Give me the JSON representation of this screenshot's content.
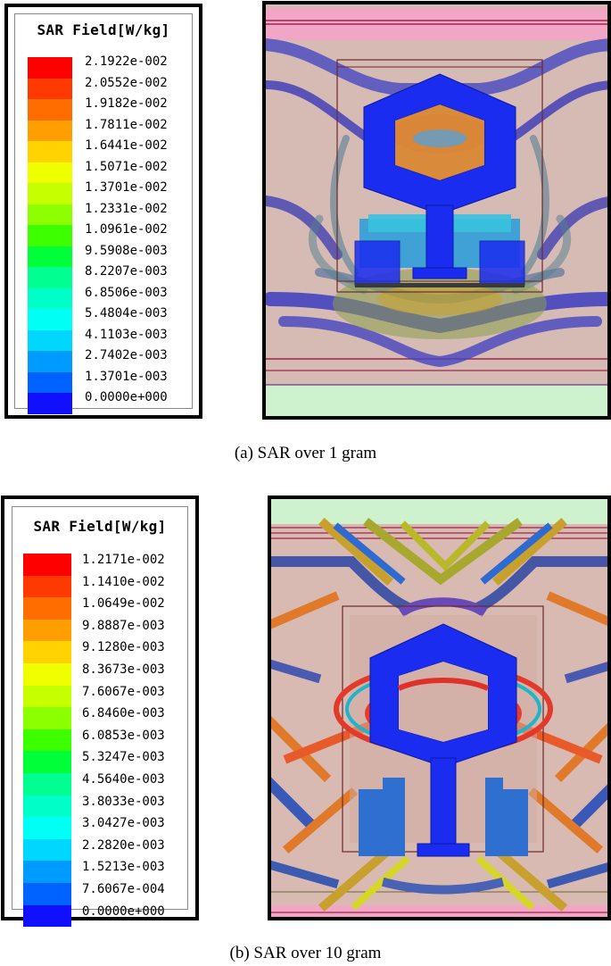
{
  "panels": [
    {
      "id": "a",
      "legend_title": "SAR Field[W/kg]",
      "colors": [
        "#ff0000",
        "#ff3a00",
        "#ff6d00",
        "#ff9e00",
        "#ffd200",
        "#f0ff00",
        "#c6ff00",
        "#8cff00",
        "#3cff00",
        "#00ff38",
        "#00ff90",
        "#00ffc8",
        "#00fff5",
        "#00d7ff",
        "#009bff",
        "#0063ff",
        "#1010ff"
      ],
      "values": [
        "2.1922e-002",
        "2.0552e-002",
        "1.9182e-002",
        "1.7811e-002",
        "1.6441e-002",
        "1.5071e-002",
        "1.3701e-002",
        "1.2331e-002",
        "1.0961e-002",
        "9.5908e-003",
        "8.2207e-003",
        "6.8506e-003",
        "5.4804e-003",
        "4.1103e-003",
        "2.7402e-003",
        "1.3701e-003",
        "0.0000e+000"
      ],
      "caption": "(a)  SAR over 1 gram"
    },
    {
      "id": "b",
      "legend_title": "SAR Field[W/kg]",
      "colors": [
        "#ff0000",
        "#ff3a00",
        "#ff6d00",
        "#ff9e00",
        "#ffd200",
        "#f0ff00",
        "#c6ff00",
        "#8cff00",
        "#3cff00",
        "#00ff38",
        "#00ff90",
        "#00ffc8",
        "#00fff5",
        "#00d7ff",
        "#009bff",
        "#0063ff",
        "#1010ff"
      ],
      "values": [
        "1.2171e-002",
        "1.1410e-002",
        "1.0649e-002",
        "9.8887e-003",
        "9.1280e-003",
        "8.3673e-003",
        "7.6067e-003",
        "6.8460e-003",
        "6.0853e-003",
        "5.3247e-003",
        "4.5640e-003",
        "3.8033e-003",
        "3.0427e-003",
        "2.2820e-003",
        "1.5213e-003",
        "7.6067e-004",
        "0.0000e+000"
      ],
      "caption": "(b)  SAR over 10 gram"
    }
  ]
}
